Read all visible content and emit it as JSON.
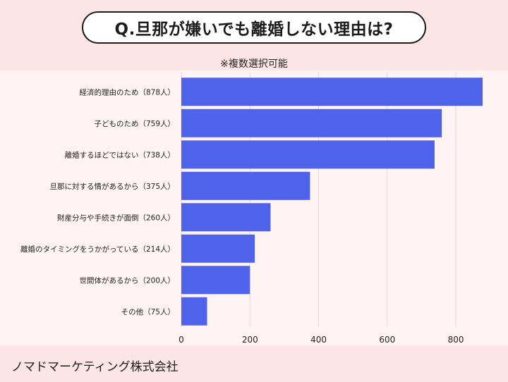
{
  "title": "Q.旦那が嫌いでも離婚しない理由は?",
  "subtitle": "※複数選択可能",
  "footer": "ノマドマーケティング株式会社",
  "colors": {
    "bar": "#4f63ea",
    "grid": "#e7d6d8",
    "text": "#222222"
  },
  "chart_data": {
    "type": "bar",
    "orientation": "horizontal",
    "categories": [
      "経済的理由のため（878人）",
      "子どものため（759人）",
      "離婚するほどではない（738人）",
      "旦那に対する情があるから（375人）",
      "財産分与や手続きが面倒（260人）",
      "離婚のタイミングをうかがっている（214人）",
      "世間体があるから（200人）",
      "その他（75人）"
    ],
    "values": [
      878,
      759,
      738,
      375,
      260,
      214,
      200,
      75
    ],
    "xlim": [
      0,
      880
    ],
    "xticks": [
      0,
      200,
      400,
      600,
      800
    ],
    "grid": true
  }
}
